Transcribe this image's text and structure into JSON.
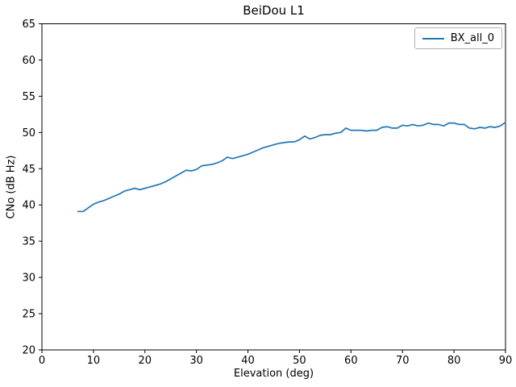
{
  "figure": {
    "background": "#ffffff",
    "text_color": "#000000",
    "legend_border_color": "#b0b0b0"
  },
  "chart_data": {
    "type": "line",
    "title": "BeiDou L1",
    "xlabel": "Elevation (deg)",
    "ylabel": "CNo (dB Hz)",
    "xlim": [
      0,
      90
    ],
    "ylim": [
      20,
      65
    ],
    "xticks": [
      0,
      10,
      20,
      30,
      40,
      50,
      60,
      70,
      80,
      90
    ],
    "yticks": [
      20,
      25,
      30,
      35,
      40,
      45,
      50,
      55,
      60,
      65
    ],
    "grid": false,
    "legend_position": "upper right",
    "series": [
      {
        "name": "BX_all_0",
        "color": "#1f77b4",
        "x": [
          7,
          8,
          9,
          10,
          11,
          12,
          13,
          14,
          15,
          16,
          17,
          18,
          19,
          20,
          21,
          22,
          23,
          24,
          25,
          26,
          27,
          28,
          29,
          30,
          31,
          32,
          33,
          34,
          35,
          36,
          37,
          38,
          39,
          40,
          41,
          42,
          43,
          44,
          45,
          46,
          47,
          48,
          49,
          50,
          51,
          52,
          53,
          54,
          55,
          56,
          57,
          58,
          59,
          60,
          61,
          62,
          63,
          64,
          65,
          66,
          67,
          68,
          69,
          70,
          71,
          72,
          73,
          74,
          75,
          76,
          77,
          78,
          79,
          80,
          81,
          82,
          83,
          84,
          85,
          86,
          87,
          88,
          89,
          90
        ],
        "y": [
          39.1,
          39.1,
          39.6,
          40.1,
          40.4,
          40.6,
          40.9,
          41.2,
          41.5,
          41.9,
          42.1,
          42.3,
          42.1,
          42.3,
          42.5,
          42.7,
          42.9,
          43.2,
          43.6,
          44.0,
          44.4,
          44.8,
          44.7,
          44.9,
          45.4,
          45.5,
          45.6,
          45.8,
          46.1,
          46.6,
          46.4,
          46.6,
          46.8,
          47.0,
          47.3,
          47.6,
          47.9,
          48.1,
          48.3,
          48.5,
          48.6,
          48.7,
          48.7,
          49.0,
          49.5,
          49.1,
          49.3,
          49.6,
          49.7,
          49.7,
          49.9,
          50.0,
          50.6,
          50.3,
          50.3,
          50.3,
          50.2,
          50.3,
          50.3,
          50.7,
          50.8,
          50.6,
          50.6,
          51.0,
          50.9,
          51.1,
          50.9,
          51.0,
          51.3,
          51.1,
          51.1,
          50.9,
          51.3,
          51.3,
          51.1,
          51.1,
          50.6,
          50.5,
          50.7,
          50.6,
          50.8,
          50.7,
          50.9,
          51.4
        ]
      }
    ]
  }
}
